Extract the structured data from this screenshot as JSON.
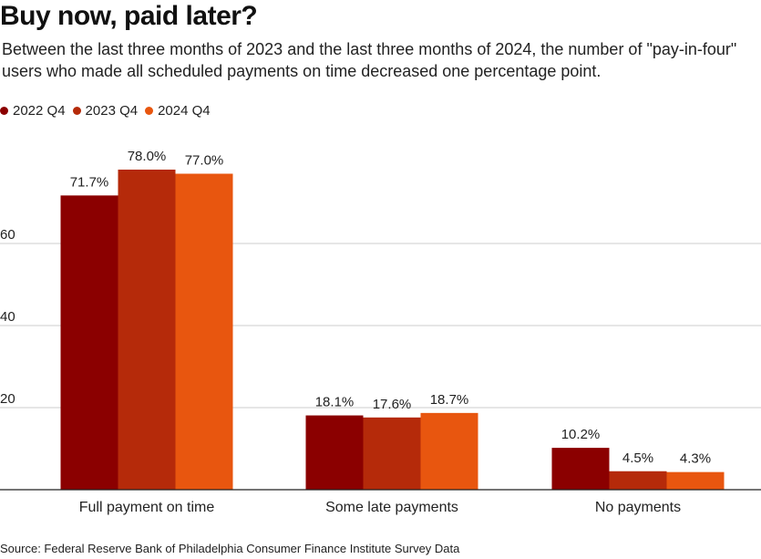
{
  "title": "Buy now, paid later?",
  "subtitle": "Between the last three months of 2023 and the last three months of 2024, the number of \"pay-in-four\" users who made all scheduled payments on time decreased one percentage point.",
  "source": "Source: Federal Reserve Bank of Philadelphia Consumer Finance Institute Survey Data",
  "colors": {
    "s2022": "#8b0000",
    "s2023": "#b52a0a",
    "s2024": "#e8560f",
    "grid": "#cccccc",
    "axis": "#222222"
  },
  "chart_data": {
    "type": "bar",
    "title": "Buy now, paid later?",
    "xlabel": "",
    "ylabel": "",
    "ylim": [
      0,
      80
    ],
    "yticks": [
      20,
      40,
      60
    ],
    "categories": [
      "Full payment on time",
      "Some late payments",
      "No payments"
    ],
    "series": [
      {
        "name": "2022 Q4",
        "values": [
          71.7,
          18.1,
          10.2
        ],
        "labels": [
          "71.7%",
          "18.1%",
          "10.2%"
        ]
      },
      {
        "name": "2023 Q4",
        "values": [
          78.0,
          17.6,
          4.5
        ],
        "labels": [
          "78.0%",
          "17.6%",
          "4.5%"
        ]
      },
      {
        "name": "2024 Q4",
        "values": [
          77.0,
          18.7,
          4.3
        ],
        "labels": [
          "77.0%",
          "18.7%",
          "4.3%"
        ]
      }
    ],
    "legend_position": "top-left"
  }
}
